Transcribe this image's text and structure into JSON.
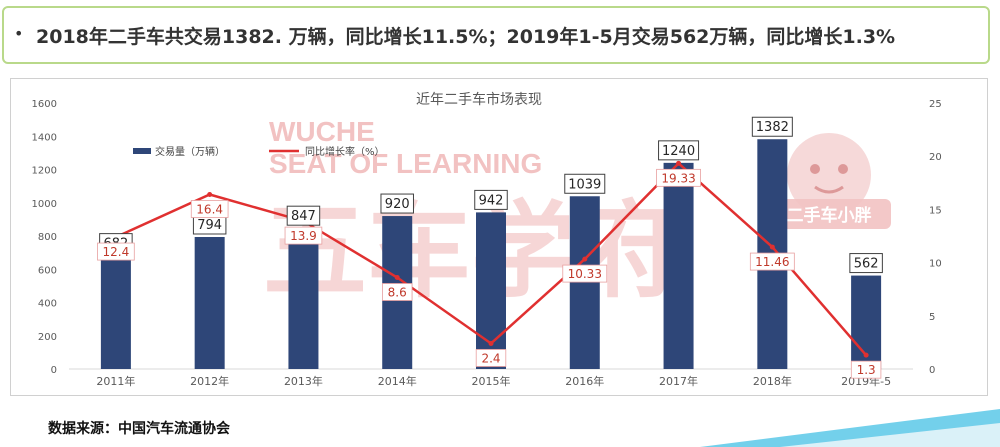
{
  "headline": {
    "bullet": "•",
    "text": "2018年二手车共交易1382. 万辆，同比增长11.5%；2019年1-5月交易562万辆，同比增长1.3%"
  },
  "source": "数据来源：中国汽车流通协会",
  "watermark": {
    "line1": "WUCHE",
    "line2": "SEAT OF LEARNING",
    "big": "五车学府",
    "logo_text": "二手车小胖"
  },
  "colors": {
    "bar": "#2e4678",
    "line": "#e03030",
    "headline_border": "#b9d98a",
    "watermark": "#f2c2c2",
    "accent_stripe": "#5bc8e8"
  },
  "chart_data": {
    "type": "bar",
    "title": "近年二手车市场表现",
    "categories": [
      "2011年",
      "2012年",
      "2013年",
      "2014年",
      "2015年",
      "2016年",
      "2017年",
      "2018年",
      "2019年-5"
    ],
    "series": [
      {
        "name": "交易量（万辆）",
        "type": "bar",
        "axis": "left",
        "values": [
          682,
          794,
          847,
          920,
          942,
          1039,
          1240,
          1382,
          562
        ],
        "labels": [
          "682",
          "794",
          "847",
          "920",
          "942",
          "1039",
          "1240",
          "1382",
          "562"
        ]
      },
      {
        "name": "同比增长率（%）",
        "type": "line",
        "axis": "right",
        "values": [
          12.4,
          16.4,
          13.9,
          8.6,
          2.4,
          10.33,
          19.33,
          11.46,
          1.3
        ],
        "labels": [
          "12.4",
          "16.4",
          "13.9",
          "8.6",
          "2.4",
          "10.33",
          "19.33",
          "11.46",
          "1.3"
        ]
      }
    ],
    "ylim": [
      0,
      1600
    ],
    "yticks": [
      "0",
      "200",
      "400",
      "600",
      "800",
      "1000",
      "1200",
      "1400",
      "1600"
    ],
    "y2lim": [
      0,
      25
    ],
    "y2ticks": [
      "0",
      "5",
      "10",
      "15",
      "20",
      "25"
    ],
    "legend": "top-left",
    "grid": false
  }
}
